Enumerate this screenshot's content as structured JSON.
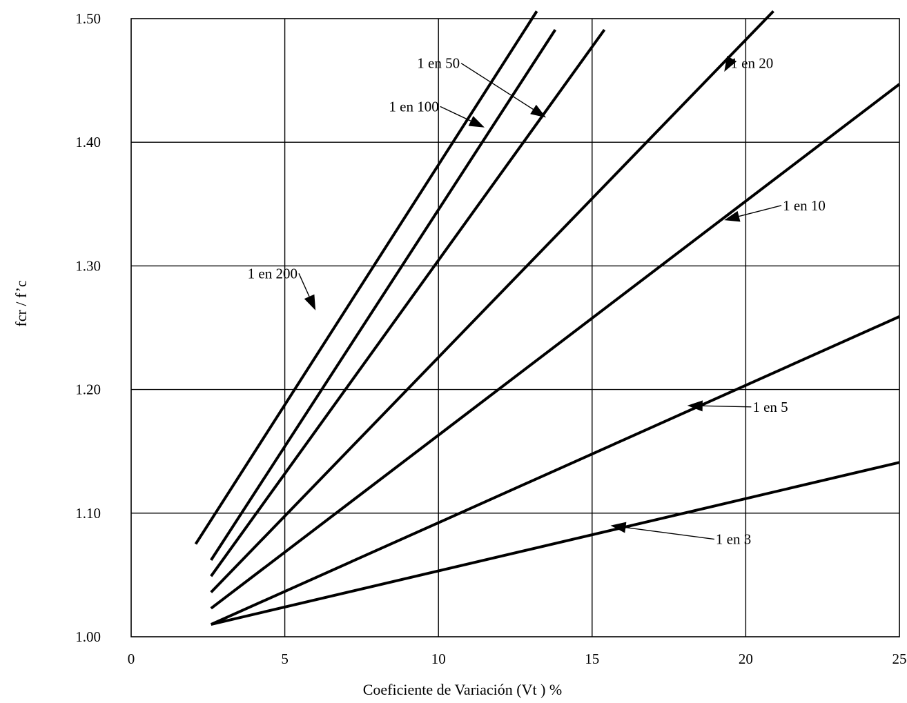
{
  "chart_data": {
    "type": "line",
    "xlabel": "Coeficiente de Variación (Vt ) %",
    "ylabel": "fcr / f’c",
    "xlim": [
      0,
      25
    ],
    "ylim": [
      1.0,
      1.5
    ],
    "x_ticks": [
      "0",
      "5",
      "10",
      "15",
      "20",
      "25"
    ],
    "y_ticks": [
      "1.00",
      "1.10",
      "1.20",
      "1.30",
      "1.40",
      "1.50"
    ],
    "grid": true,
    "line_color": "#000000",
    "series": [
      {
        "name": "1 en 200",
        "x": [
          2.1,
          13.2
        ],
        "y": [
          1.075,
          1.506
        ]
      },
      {
        "name": "1 en 100",
        "x": [
          2.6,
          13.8
        ],
        "y": [
          1.062,
          1.491
        ]
      },
      {
        "name": "1 en 50",
        "x": [
          2.6,
          15.4
        ],
        "y": [
          1.049,
          1.491
        ]
      },
      {
        "name": "1 en 20",
        "x": [
          2.6,
          20.9
        ],
        "y": [
          1.036,
          1.506
        ]
      },
      {
        "name": "1 en 10",
        "x": [
          2.6,
          25.0
        ],
        "y": [
          1.023,
          1.447
        ]
      },
      {
        "name": "1 en 5",
        "x": [
          2.6,
          25.0
        ],
        "y": [
          1.01,
          1.259
        ]
      },
      {
        "name": "1 en 3",
        "x": [
          2.6,
          25.0
        ],
        "y": [
          1.01,
          1.141
        ]
      }
    ],
    "annotations": [
      {
        "series": "1 en 50",
        "text": "1 en 50",
        "text_at": [
          10.0,
          1.46
        ],
        "arrow_to": [
          13.5,
          1.42
        ]
      },
      {
        "series": "1 en 100",
        "text": "1 en 100",
        "text_at": [
          9.2,
          1.425
        ],
        "arrow_to": [
          11.5,
          1.412
        ]
      },
      {
        "series": "1 en 200",
        "text": "1 en 200",
        "text_at": [
          4.6,
          1.29
        ],
        "arrow_to": [
          6.0,
          1.264
        ]
      },
      {
        "series": "1 en 20",
        "text": "1 en 20",
        "text_at": [
          20.2,
          1.46
        ],
        "arrow_to": [
          19.3,
          1.457
        ]
      },
      {
        "series": "1 en 10",
        "text": "1 en 10",
        "text_at": [
          21.9,
          1.345
        ],
        "arrow_to": [
          19.3,
          1.337
        ]
      },
      {
        "series": "1 en 5",
        "text": "1 en 5",
        "text_at": [
          20.8,
          1.182
        ],
        "arrow_to": [
          18.1,
          1.187
        ]
      },
      {
        "series": "1 en 3",
        "text": "1 en 3",
        "text_at": [
          19.6,
          1.075
        ],
        "arrow_to": [
          15.6,
          1.09
        ]
      }
    ]
  }
}
